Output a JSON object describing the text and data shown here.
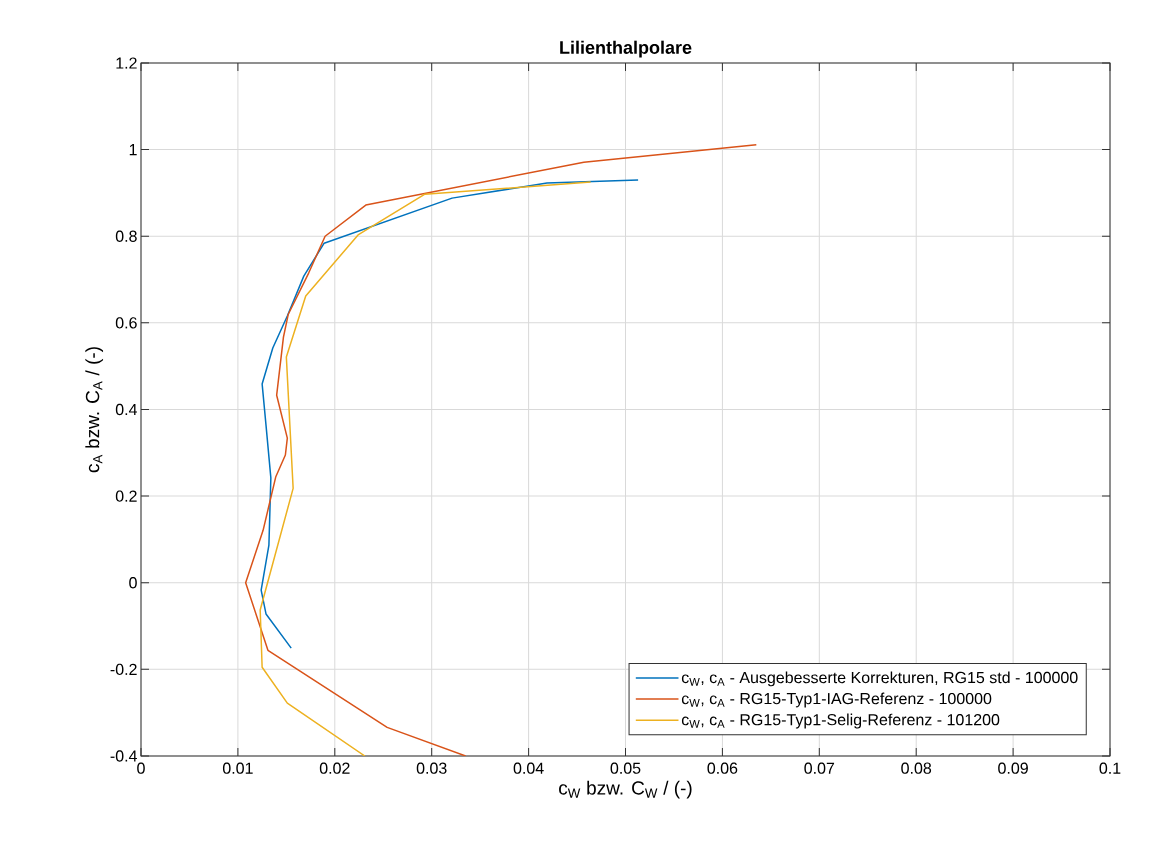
{
  "chart_data": {
    "type": "line",
    "title": "Lilienthalpolare",
    "xlabel": "c$_{W}$ bzw. C$_{W}$ / (-)",
    "ylabel": "c$_{A}$ bzw. C$_{A}$ / (-)",
    "xlim": [
      0,
      0.1
    ],
    "ylim": [
      -0.4,
      1.2
    ],
    "xticks": [
      0,
      0.01,
      0.02,
      0.03,
      0.04,
      0.05,
      0.06,
      0.07,
      0.08,
      0.09,
      0.1
    ],
    "yticks": [
      -0.4,
      -0.2,
      0,
      0.2,
      0.4,
      0.6,
      0.8,
      1,
      1.2
    ],
    "grid": true,
    "legend": "bottom right",
    "line_style": "solid",
    "marker": "none",
    "series": [
      {
        "name": "c$_{W}$, c$_{A}$ - Ausgebesserte Korrekturen, RG15 std - 100000",
        "color": "#0072bd",
        "x": [
          0.0155,
          0.0129,
          0.0124,
          0.0132,
          0.0134,
          0.0129,
          0.0125,
          0.0136,
          0.0151,
          0.0168,
          0.0189,
          0.0321,
          0.0419,
          0.0513
        ],
        "values": [
          -0.151,
          -0.072,
          -0.017,
          0.087,
          0.242,
          0.364,
          0.459,
          0.542,
          0.616,
          0.708,
          0.784,
          0.888,
          0.923,
          0.93
        ]
      },
      {
        "name": "c$_{W}$, c$_{A}$ - RG15-Typ1-IAG-Referenz - 100000",
        "color": "#d95319",
        "x": [
          0.0335,
          0.0254,
          0.0131,
          0.0108,
          0.0126,
          0.0139,
          0.0149,
          0.0151,
          0.014,
          0.0147,
          0.0152,
          0.0173,
          0.019,
          0.0232,
          0.0457,
          0.0635
        ],
        "values": [
          -0.4,
          -0.334,
          -0.156,
          0.0,
          0.121,
          0.244,
          0.295,
          0.334,
          0.433,
          0.567,
          0.62,
          0.715,
          0.8,
          0.872,
          0.971,
          1.011
        ]
      },
      {
        "name": "c$_{W}$, c$_{A}$ - RG15-Typ1-Selig-Referenz - 101200",
        "color": "#edb120",
        "x": [
          0.0231,
          0.0151,
          0.0125,
          0.0123,
          0.0157,
          0.015,
          0.017,
          0.0224,
          0.0293,
          0.0464
        ],
        "values": [
          -0.4,
          -0.278,
          -0.195,
          -0.063,
          0.218,
          0.521,
          0.662,
          0.803,
          0.897,
          0.925
        ]
      }
    ]
  }
}
